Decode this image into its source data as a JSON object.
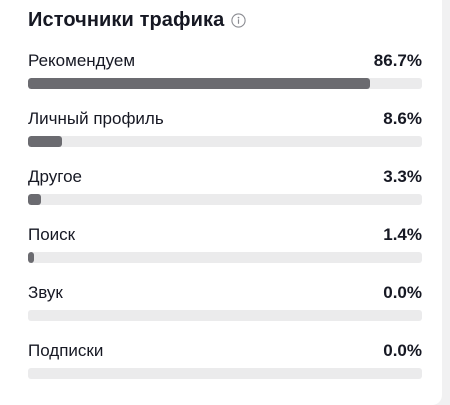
{
  "section": {
    "title": "Источники трафика",
    "info_icon": "info-circle-icon"
  },
  "sources": [
    {
      "label": "Рекомендуем",
      "value": "86.7%",
      "percent": 86.7
    },
    {
      "label": "Личный профиль",
      "value": "8.6%",
      "percent": 8.6
    },
    {
      "label": "Другое",
      "value": "3.3%",
      "percent": 3.3
    },
    {
      "label": "Поиск",
      "value": "1.4%",
      "percent": 1.4
    },
    {
      "label": "Звук",
      "value": "0.0%",
      "percent": 0.0
    },
    {
      "label": "Подписки",
      "value": "0.0%",
      "percent": 0.0
    }
  ],
  "colors": {
    "bar_fill": "#6b6b70",
    "bar_track": "#ebebec",
    "text": "#161823"
  }
}
